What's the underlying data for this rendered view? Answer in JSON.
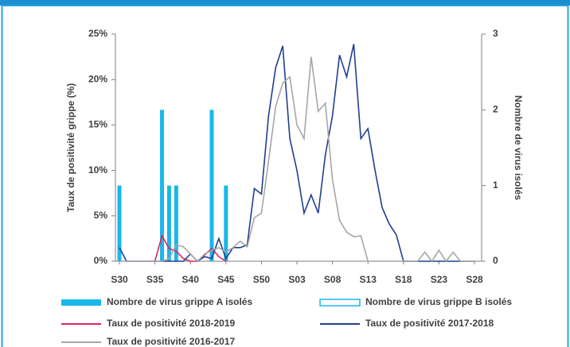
{
  "chart_data": {
    "type": "bar",
    "ylabel": "Taux de positivité grippe (%)",
    "y2label": "Nombre de virus isolés",
    "categories": [
      "S30",
      null,
      null,
      null,
      null,
      "S35",
      null,
      null,
      null,
      null,
      "S40",
      null,
      null,
      null,
      null,
      "S45",
      null,
      null,
      null,
      null,
      "S50",
      null,
      null,
      null,
      null,
      "S03",
      null,
      null,
      null,
      null,
      "S08",
      null,
      null,
      null,
      null,
      "S13",
      null,
      null,
      null,
      null,
      "S18",
      null,
      null,
      null,
      null,
      "S23",
      null,
      null,
      null,
      null,
      "S28",
      null
    ],
    "ylim": [
      0,
      25
    ],
    "yticks": [
      {
        "value": 0,
        "label": "0%"
      },
      {
        "value": 5,
        "label": "5%"
      },
      {
        "value": 10,
        "label": "10%"
      },
      {
        "value": 15,
        "label": "15%"
      },
      {
        "value": 20,
        "label": "20%"
      },
      {
        "value": 25,
        "label": "25%"
      }
    ],
    "y2lim": [
      0,
      3
    ],
    "y2ticks": [
      0,
      1,
      2,
      3
    ],
    "series": [
      {
        "name": "Nombre de virus grippe A isolés",
        "type": "bar",
        "axis": "y2",
        "color": "#1ab7ea",
        "outline": false,
        "values": [
          1,
          0,
          0,
          0,
          0,
          0,
          2,
          1,
          1,
          0,
          0,
          0,
          0,
          2,
          0,
          1,
          0,
          0,
          0,
          0,
          0,
          0,
          0,
          0,
          0,
          0,
          0,
          0,
          0,
          0,
          0,
          0,
          0,
          0,
          0,
          0,
          0,
          0,
          0,
          0,
          0,
          0,
          0,
          0,
          0,
          0,
          0,
          0,
          0,
          0,
          0,
          0
        ]
      },
      {
        "name": "Nombre de virus grippe B isolés",
        "type": "bar",
        "axis": "y2",
        "color": "#1ab7ea",
        "outline": true,
        "values": [
          0,
          0,
          0,
          0,
          0,
          0,
          0,
          0,
          0,
          0,
          0,
          0,
          0,
          0,
          0,
          0,
          0,
          0,
          0,
          0,
          0,
          0,
          0,
          0,
          0,
          0,
          0,
          0,
          0,
          0,
          0,
          0,
          0,
          0,
          0,
          0,
          0,
          0,
          0,
          0,
          0,
          0,
          0,
          0,
          0,
          0,
          0,
          0,
          0,
          0,
          0,
          0
        ]
      },
      {
        "name": "Taux de positivité 2018-2019",
        "type": "line",
        "color": "#e0245e",
        "values": [
          null,
          null,
          null,
          null,
          null,
          0,
          2.8,
          1.4,
          1.1,
          0.3,
          0,
          0,
          0.7,
          1.4,
          0.5,
          0,
          null,
          null,
          null,
          null,
          null,
          null,
          null,
          null,
          null,
          null,
          null,
          null,
          null,
          null,
          null,
          null,
          null,
          null,
          null,
          null,
          null,
          null,
          null,
          null,
          null,
          null,
          null,
          null,
          null,
          null,
          null,
          null,
          null,
          null,
          null,
          null
        ]
      },
      {
        "name": "Taux de positivité 2017-2018",
        "type": "line",
        "color": "#1f3f8f",
        "values": [
          1.5,
          0,
          0,
          0,
          0,
          0,
          0,
          0,
          0,
          0,
          0.8,
          0,
          0.5,
          0.3,
          2.5,
          0.3,
          1.5,
          1.5,
          1.8,
          8,
          7.4,
          16,
          21.3,
          23.7,
          13.5,
          10,
          5.3,
          7.3,
          5.3,
          11.7,
          16,
          22.7,
          20.3,
          23.9,
          13.5,
          14.6,
          10,
          5.9,
          4.1,
          2.9,
          0,
          0,
          0,
          0,
          0,
          0,
          0,
          0,
          0,
          0,
          0,
          null
        ]
      },
      {
        "name": "Taux de positivité 2016-2017",
        "type": "line",
        "color": "#a6a6a6",
        "values": [
          0,
          0,
          0,
          0,
          0,
          0,
          0,
          0.3,
          1.8,
          1.6,
          0.8,
          0,
          0.8,
          1.2,
          1.5,
          1,
          1.5,
          2.2,
          1.6,
          4.8,
          5.3,
          11,
          17,
          19.6,
          20.3,
          15,
          13.5,
          22.5,
          16.5,
          17.4,
          9,
          4.5,
          3.2,
          2.7,
          2.8,
          0,
          0,
          0,
          0,
          0,
          0,
          0,
          0,
          1,
          0,
          1.2,
          0,
          1,
          0,
          0,
          0,
          null
        ]
      }
    ]
  }
}
